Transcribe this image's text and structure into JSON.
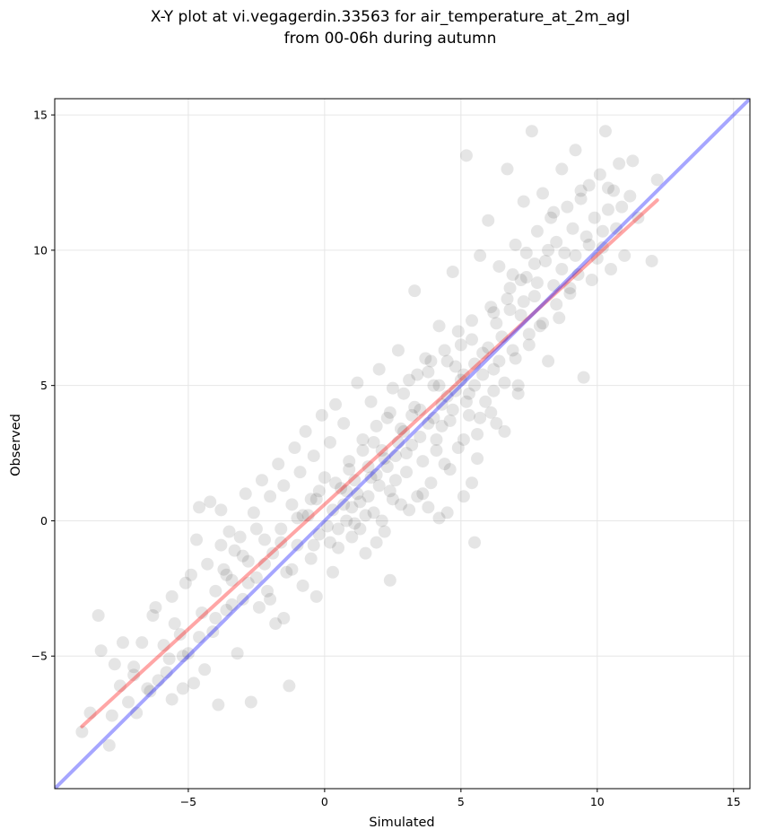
{
  "chart_data": {
    "type": "scatter",
    "title": [
      "X-Y plot at vi.vegagerdin.33563 for air_temperature_at_2m_agl",
      "from 00-06h during autumn"
    ],
    "xlabel": "Simulated",
    "ylabel": "Observed",
    "xlim": [
      -9.9,
      15.6
    ],
    "ylim": [
      -9.9,
      15.6
    ],
    "xticks": [
      -5,
      0,
      5,
      10,
      15
    ],
    "yticks": [
      -5,
      0,
      5,
      10,
      15
    ],
    "xtick_labels": [
      "−5",
      "0",
      "5",
      "10",
      "15"
    ],
    "ytick_labels": [
      "−5",
      "0",
      "5",
      "10",
      "15"
    ],
    "grid": true,
    "point_color": "#000000",
    "point_opacity": 0.1,
    "series": [
      {
        "kind": "scatter",
        "points": [
          [
            -8.9,
            -7.8
          ],
          [
            -8.6,
            -7.1
          ],
          [
            -8.3,
            -3.5
          ],
          [
            -8.2,
            -4.8
          ],
          [
            -7.9,
            -8.3
          ],
          [
            -7.7,
            -5.3
          ],
          [
            -7.5,
            -6.1
          ],
          [
            -7.4,
            -4.5
          ],
          [
            -7.2,
            -6.7
          ],
          [
            -7.0,
            -5.4
          ],
          [
            -6.9,
            -7.1
          ],
          [
            -6.7,
            -4.5
          ],
          [
            -6.5,
            -6.2
          ],
          [
            -6.3,
            -3.5
          ],
          [
            -6.1,
            -5.9
          ],
          [
            -5.9,
            -4.6
          ],
          [
            -5.7,
            -5.1
          ],
          [
            -5.6,
            -6.6
          ],
          [
            -5.5,
            -3.8
          ],
          [
            -5.3,
            -4.2
          ],
          [
            -5.2,
            -6.2
          ],
          [
            -5.1,
            -2.3
          ],
          [
            -5.0,
            -4.9
          ],
          [
            -4.8,
            -6.0
          ],
          [
            -4.7,
            -0.7
          ],
          [
            -4.6,
            0.5
          ],
          [
            -4.5,
            -3.4
          ],
          [
            -4.4,
            -5.5
          ],
          [
            -4.3,
            -1.6
          ],
          [
            -4.2,
            0.7
          ],
          [
            -4.1,
            -4.1
          ],
          [
            -4.0,
            -2.6
          ],
          [
            -3.9,
            -6.8
          ],
          [
            -3.8,
            -0.9
          ],
          [
            -3.7,
            -1.8
          ],
          [
            -3.6,
            -3.3
          ],
          [
            -3.5,
            -0.4
          ],
          [
            -3.4,
            -2.2
          ],
          [
            -3.3,
            -1.1
          ],
          [
            -3.2,
            -4.9
          ],
          [
            -3.1,
            -0.6
          ],
          [
            -3.0,
            -2.9
          ],
          [
            -2.9,
            1.0
          ],
          [
            -2.8,
            -1.5
          ],
          [
            -2.7,
            -6.7
          ],
          [
            -2.6,
            0.3
          ],
          [
            -2.5,
            -2.1
          ],
          [
            -2.4,
            -3.2
          ],
          [
            -2.3,
            1.5
          ],
          [
            -2.2,
            -0.7
          ],
          [
            -2.1,
            -2.6
          ],
          [
            -2.0,
            0.9
          ],
          [
            -1.9,
            -1.2
          ],
          [
            -1.8,
            -3.8
          ],
          [
            -1.7,
            2.1
          ],
          [
            -1.6,
            -0.3
          ],
          [
            -1.5,
            1.3
          ],
          [
            -1.4,
            -1.9
          ],
          [
            -1.3,
            -6.1
          ],
          [
            -1.2,
            0.6
          ],
          [
            -1.1,
            2.7
          ],
          [
            -1.0,
            -0.9
          ],
          [
            -0.9,
            1.8
          ],
          [
            -0.8,
            -2.4
          ],
          [
            -0.7,
            3.3
          ],
          [
            -0.6,
            0.2
          ],
          [
            -0.5,
            -1.4
          ],
          [
            -0.4,
            2.4
          ],
          [
            -0.3,
            0.8
          ],
          [
            -0.2,
            -0.5
          ],
          [
            -0.1,
            3.9
          ],
          [
            0.0,
            1.6
          ],
          [
            0.1,
            -0.2
          ],
          [
            0.2,
            2.9
          ],
          [
            0.3,
            0.4
          ],
          [
            0.4,
            4.3
          ],
          [
            0.5,
            -1.0
          ],
          [
            0.6,
            1.2
          ],
          [
            0.7,
            3.6
          ],
          [
            0.8,
            0.0
          ],
          [
            0.9,
            2.2
          ],
          [
            1.0,
            -0.6
          ],
          [
            1.1,
            1.5
          ],
          [
            1.2,
            5.1
          ],
          [
            1.3,
            0.7
          ],
          [
            1.4,
            3.0
          ],
          [
            1.5,
            -1.2
          ],
          [
            1.6,
            2.0
          ],
          [
            1.7,
            4.4
          ],
          [
            1.8,
            0.3
          ],
          [
            1.9,
            1.7
          ],
          [
            2.0,
            5.6
          ],
          [
            2.1,
            2.6
          ],
          [
            2.2,
            -0.4
          ],
          [
            2.3,
            3.8
          ],
          [
            2.4,
            1.1
          ],
          [
            2.5,
            4.9
          ],
          [
            2.6,
            2.4
          ],
          [
            2.7,
            6.3
          ],
          [
            2.8,
            0.6
          ],
          [
            2.9,
            3.3
          ],
          [
            3.0,
            1.8
          ],
          [
            3.1,
            5.2
          ],
          [
            3.2,
            2.8
          ],
          [
            3.3,
            8.5
          ],
          [
            3.4,
            0.9
          ],
          [
            3.5,
            4.1
          ],
          [
            3.6,
            2.2
          ],
          [
            3.7,
            6.0
          ],
          [
            3.8,
            3.6
          ],
          [
            3.9,
            1.4
          ],
          [
            4.0,
            5.0
          ],
          [
            4.1,
            3.0
          ],
          [
            4.2,
            7.2
          ],
          [
            4.3,
            4.3
          ],
          [
            4.4,
            2.1
          ],
          [
            4.5,
            5.9
          ],
          [
            4.6,
            3.7
          ],
          [
            4.7,
            9.2
          ],
          [
            4.8,
            4.8
          ],
          [
            4.9,
            2.7
          ],
          [
            5.0,
            6.5
          ],
          [
            5.1,
            5.4
          ],
          [
            5.2,
            13.5
          ],
          [
            5.3,
            3.9
          ],
          [
            5.4,
            7.4
          ],
          [
            5.5,
            5.0
          ],
          [
            5.6,
            3.2
          ],
          [
            5.7,
            9.8
          ],
          [
            5.8,
            6.2
          ],
          [
            5.9,
            4.4
          ],
          [
            6.0,
            11.1
          ],
          [
            6.1,
            7.9
          ],
          [
            6.2,
            5.6
          ],
          [
            6.3,
            3.6
          ],
          [
            6.4,
            9.4
          ],
          [
            6.5,
            6.8
          ],
          [
            6.6,
            5.1
          ],
          [
            6.7,
            13.0
          ],
          [
            6.8,
            8.6
          ],
          [
            6.9,
            6.3
          ],
          [
            7.0,
            10.2
          ],
          [
            7.1,
            4.7
          ],
          [
            7.2,
            7.6
          ],
          [
            7.3,
            11.8
          ],
          [
            7.4,
            9.0
          ],
          [
            7.5,
            6.5
          ],
          [
            7.6,
            14.4
          ],
          [
            7.7,
            8.3
          ],
          [
            7.8,
            10.7
          ],
          [
            7.9,
            7.2
          ],
          [
            8.0,
            12.1
          ],
          [
            8.1,
            9.6
          ],
          [
            8.2,
            5.9
          ],
          [
            8.3,
            11.2
          ],
          [
            8.4,
            8.7
          ],
          [
            8.5,
            10.3
          ],
          [
            8.6,
            7.5
          ],
          [
            8.7,
            13.0
          ],
          [
            8.8,
            9.9
          ],
          [
            8.9,
            11.6
          ],
          [
            9.0,
            8.4
          ],
          [
            9.1,
            10.8
          ],
          [
            9.2,
            13.7
          ],
          [
            9.3,
            9.1
          ],
          [
            9.4,
            11.9
          ],
          [
            9.5,
            5.3
          ],
          [
            9.6,
            10.5
          ],
          [
            9.7,
            12.4
          ],
          [
            9.8,
            8.9
          ],
          [
            9.9,
            11.2
          ],
          [
            10.0,
            9.7
          ],
          [
            10.1,
            12.8
          ],
          [
            10.2,
            10.1
          ],
          [
            10.3,
            14.4
          ],
          [
            10.4,
            11.5
          ],
          [
            10.5,
            9.3
          ],
          [
            10.6,
            12.2
          ],
          [
            10.7,
            10.8
          ],
          [
            10.8,
            13.2
          ],
          [
            10.9,
            11.6
          ],
          [
            11.0,
            9.8
          ],
          [
            11.2,
            12.0
          ],
          [
            11.3,
            13.3
          ],
          [
            11.5,
            11.2
          ],
          [
            12.0,
            9.6
          ],
          [
            12.2,
            12.6
          ],
          [
            0.5,
            -0.3
          ],
          [
            1.0,
            0.5
          ],
          [
            1.5,
            0.2
          ],
          [
            2.0,
            1.3
          ],
          [
            2.5,
            0.8
          ],
          [
            3.0,
            2.5
          ],
          [
            3.5,
            3.1
          ],
          [
            4.0,
            3.8
          ],
          [
            4.5,
            4.6
          ],
          [
            5.0,
            5.2
          ],
          [
            5.5,
            5.8
          ],
          [
            6.0,
            6.4
          ],
          [
            0.8,
            1.1
          ],
          [
            1.3,
            -0.3
          ],
          [
            1.8,
            2.9
          ],
          [
            2.3,
            2.0
          ],
          [
            2.8,
            3.4
          ],
          [
            3.3,
            4.2
          ],
          [
            3.8,
            5.5
          ],
          [
            4.3,
            3.5
          ],
          [
            4.8,
            5.7
          ],
          [
            5.3,
            4.7
          ],
          [
            5.8,
            5.4
          ],
          [
            6.3,
            7.3
          ],
          [
            6.8,
            7.8
          ],
          [
            7.3,
            8.1
          ],
          [
            7.8,
            8.8
          ],
          [
            -0.5,
            0.8
          ],
          [
            -1.0,
            0.1
          ],
          [
            -0.2,
            1.1
          ],
          [
            0.2,
            -0.8
          ],
          [
            1.1,
            -0.1
          ],
          [
            1.6,
            0.9
          ],
          [
            2.1,
            0.0
          ],
          [
            2.6,
            1.5
          ],
          [
            3.1,
            0.4
          ],
          [
            3.6,
            1.0
          ],
          [
            4.1,
            2.6
          ],
          [
            4.6,
            1.9
          ],
          [
            5.1,
            3.0
          ],
          [
            5.6,
            2.3
          ],
          [
            6.1,
            4.0
          ],
          [
            6.6,
            3.3
          ],
          [
            7.1,
            5.0
          ],
          [
            4.4,
            6.3
          ],
          [
            4.9,
            7.0
          ],
          [
            5.4,
            6.7
          ],
          [
            3.9,
            5.9
          ],
          [
            3.4,
            5.4
          ],
          [
            2.9,
            4.7
          ],
          [
            2.4,
            4.0
          ],
          [
            1.9,
            3.5
          ],
          [
            1.4,
            2.6
          ],
          [
            0.9,
            1.9
          ],
          [
            0.4,
            1.4
          ],
          [
            5.2,
            4.4
          ],
          [
            4.7,
            4.1
          ],
          [
            4.2,
            5.0
          ],
          [
            5.7,
            3.8
          ],
          [
            6.2,
            4.8
          ],
          [
            3.2,
            3.9
          ],
          [
            2.7,
            2.9
          ],
          [
            2.2,
            2.3
          ],
          [
            1.7,
            1.6
          ],
          [
            1.2,
            1.0
          ],
          [
            0.7,
            0.6
          ],
          [
            4.5,
            0.3
          ],
          [
            5.1,
            0.9
          ],
          [
            5.5,
            -0.8
          ],
          [
            5.4,
            1.4
          ],
          [
            4.2,
            0.1
          ],
          [
            3.8,
            0.5
          ],
          [
            -2.2,
            -1.6
          ],
          [
            -2.8,
            -2.3
          ],
          [
            -3.4,
            -3.1
          ],
          [
            -4.0,
            -3.6
          ],
          [
            -4.6,
            -4.3
          ],
          [
            -5.2,
            -5.0
          ],
          [
            -5.8,
            -5.6
          ],
          [
            -6.4,
            -6.3
          ],
          [
            -1.6,
            -0.8
          ],
          [
            -1.2,
            -1.8
          ],
          [
            -0.8,
            0.2
          ],
          [
            -0.4,
            -0.9
          ],
          [
            -2.5,
            -0.3
          ],
          [
            -2.0,
            -2.9
          ],
          [
            -3.0,
            -1.3
          ],
          [
            -3.6,
            -2.0
          ],
          [
            8.2,
            10.0
          ],
          [
            8.7,
            9.3
          ],
          [
            9.2,
            9.8
          ],
          [
            9.7,
            10.2
          ],
          [
            10.2,
            10.7
          ],
          [
            7.7,
            9.5
          ],
          [
            7.2,
            8.9
          ],
          [
            6.7,
            8.2
          ],
          [
            6.2,
            7.7
          ],
          [
            6.9,
            9.1
          ],
          [
            7.4,
            9.9
          ],
          [
            8.4,
            11.4
          ],
          [
            9.4,
            12.2
          ],
          [
            10.4,
            12.3
          ],
          [
            6.4,
            5.9
          ],
          [
            7.0,
            6.0
          ],
          [
            7.5,
            6.9
          ],
          [
            8.0,
            7.3
          ],
          [
            8.5,
            8.0
          ],
          [
            9.0,
            8.6
          ],
          [
            1.9,
            -0.8
          ],
          [
            2.4,
            -2.2
          ],
          [
            0.3,
            -1.9
          ],
          [
            -0.3,
            -2.8
          ],
          [
            -1.5,
            -3.6
          ],
          [
            -3.8,
            0.4
          ],
          [
            -4.9,
            -2.0
          ],
          [
            -5.6,
            -2.8
          ],
          [
            -6.2,
            -3.2
          ],
          [
            -7.0,
            -5.7
          ],
          [
            -7.8,
            -7.2
          ]
        ]
      },
      {
        "kind": "regression-line",
        "name": "",
        "color": "#ff0000",
        "opacity": 0.35,
        "x": [
          -8.9,
          12.2
        ],
        "y": [
          -7.6,
          11.85
        ]
      },
      {
        "kind": "identity-line",
        "name": "",
        "color": "#0000ff",
        "opacity": 0.35,
        "x": [
          -9.9,
          15.6
        ],
        "y": [
          -9.9,
          15.6
        ]
      }
    ]
  }
}
